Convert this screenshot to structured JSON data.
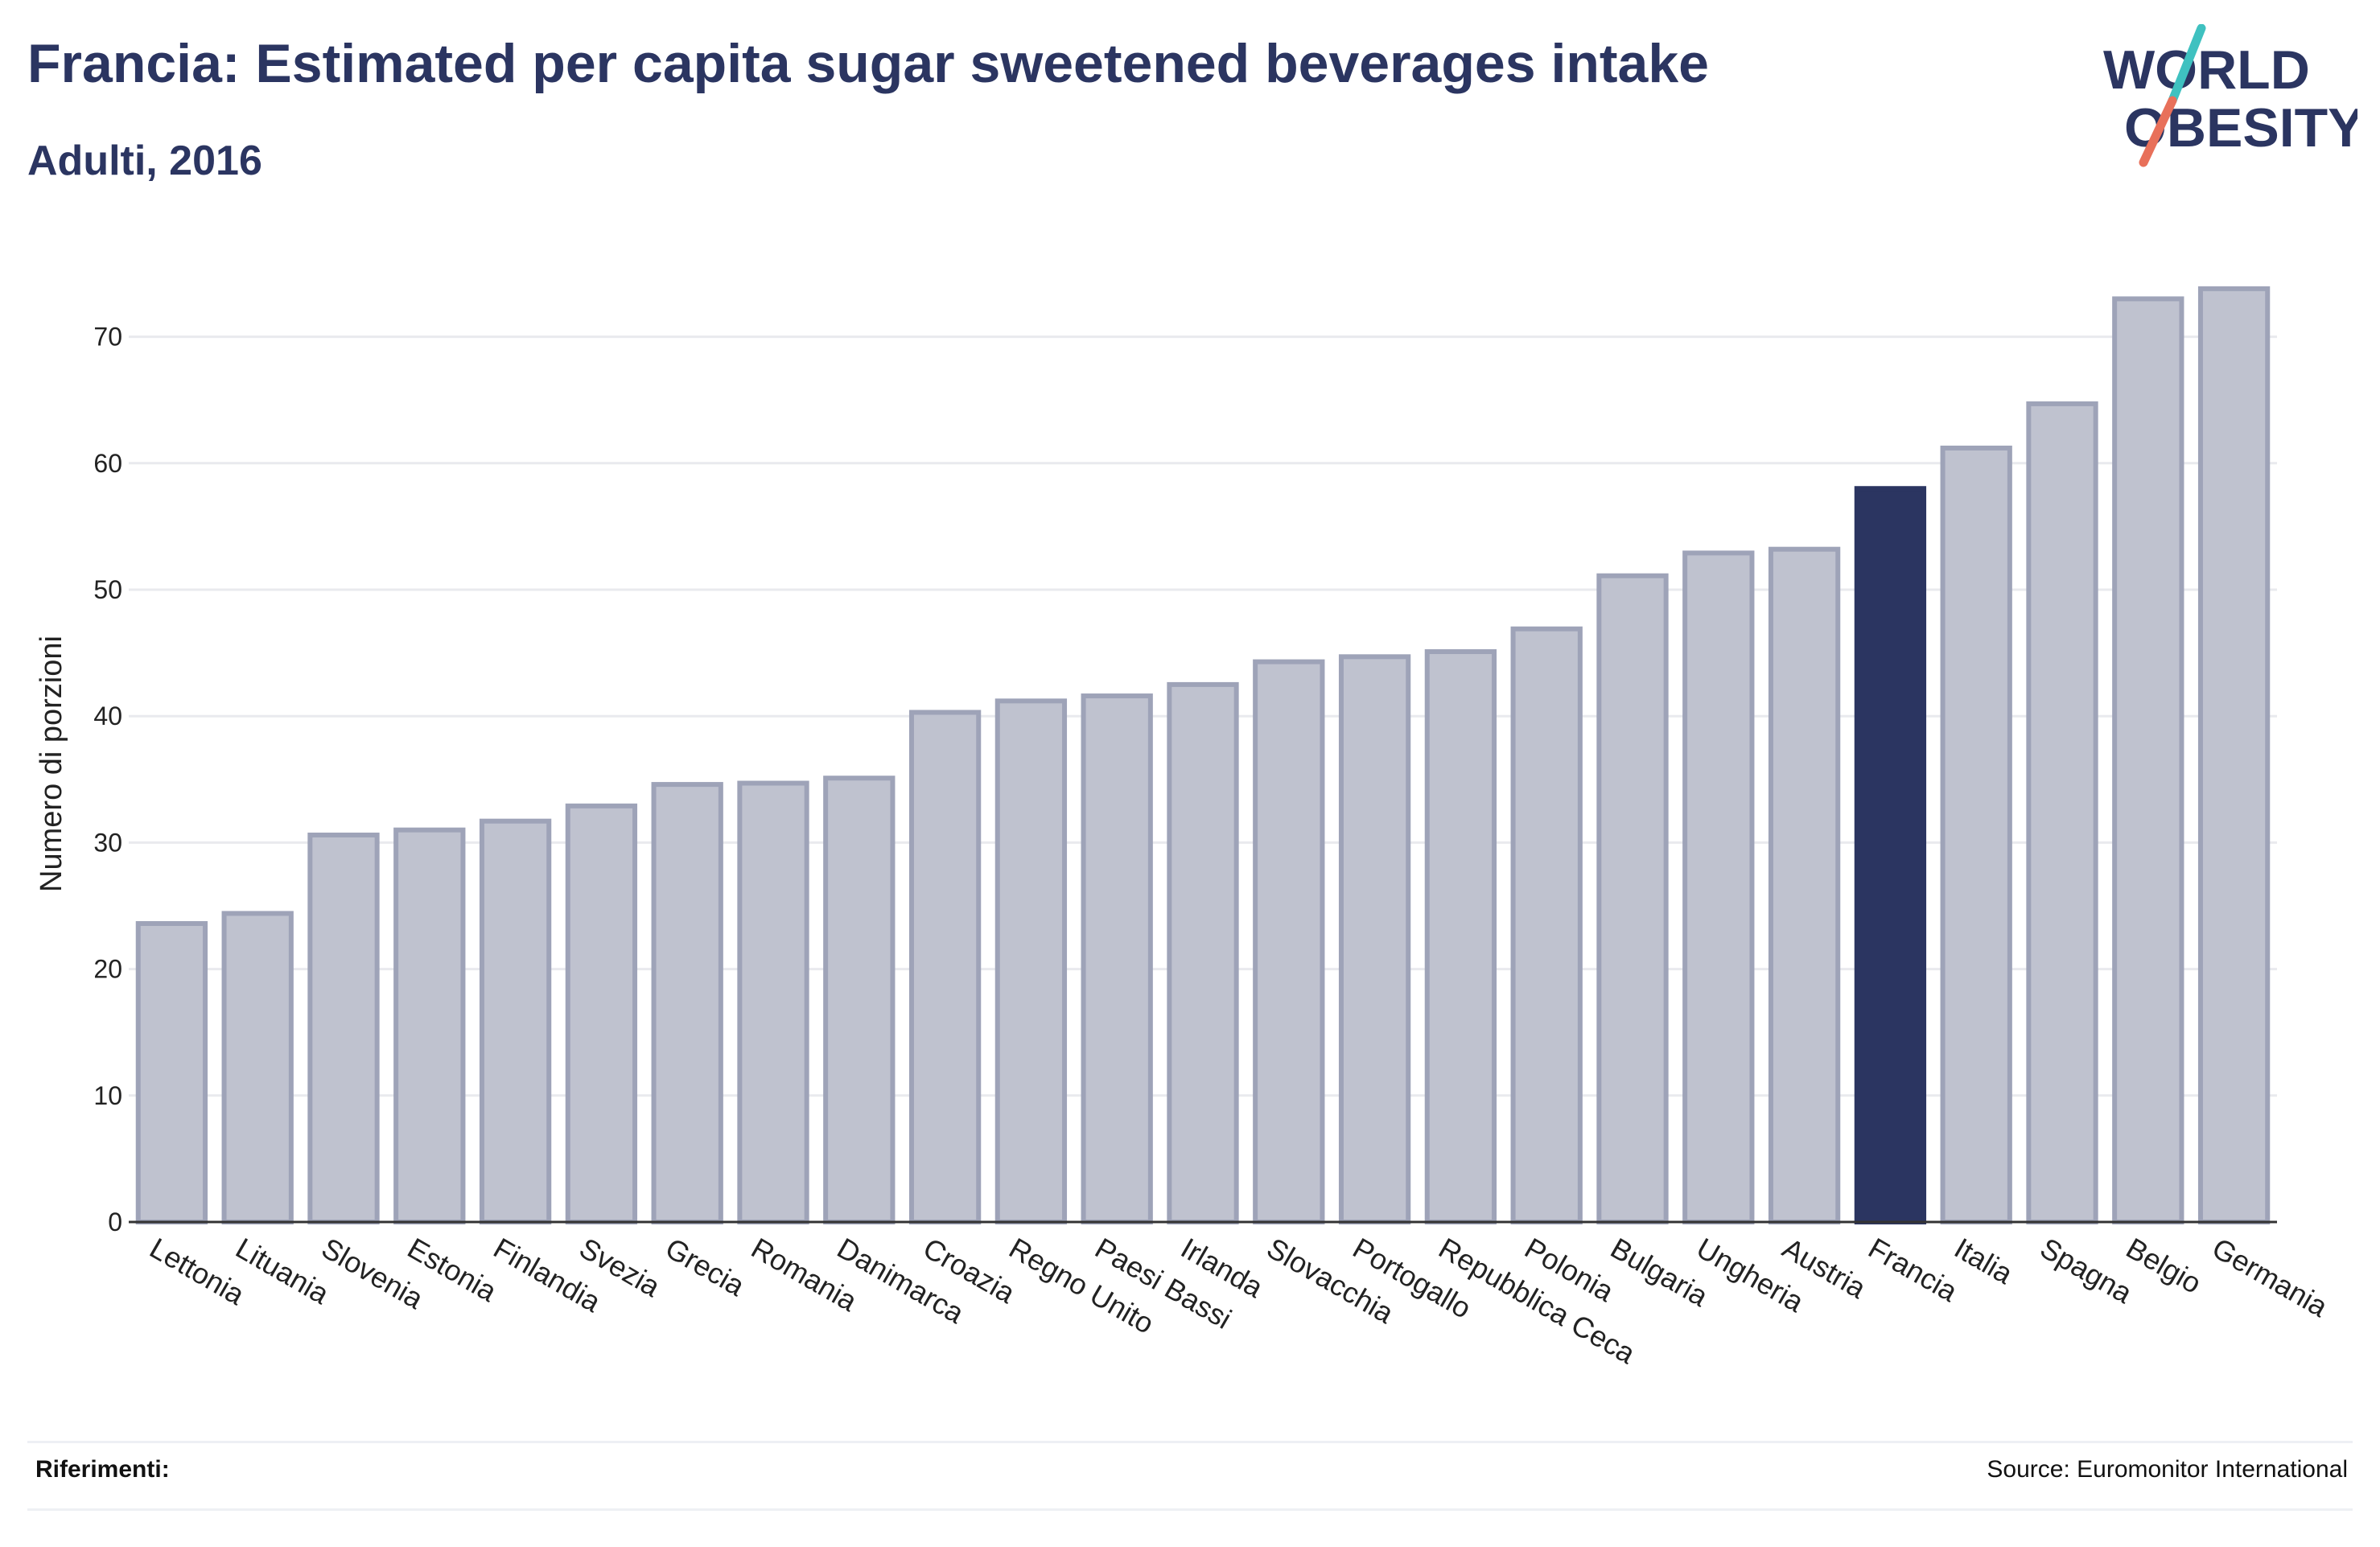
{
  "header": {
    "title": "Francia: Estimated per capita sugar sweetened beverages intake",
    "subtitle": "Adulti, 2016"
  },
  "logo": {
    "line1": "WORLD",
    "line2": "OBESITY",
    "colors": {
      "text": "#2b3561",
      "slash_top": "#3fc1c0",
      "slash_bottom": "#e8705a"
    }
  },
  "footer": {
    "references_label": "Riferimenti:",
    "source": "Source: Euromonitor International"
  },
  "colors": {
    "bar": "#bfc2cf",
    "bar_border": "#9ea3b8",
    "highlight": "#2b3561",
    "grid": "#e9eaee",
    "axis": "#333333"
  },
  "chart_data": {
    "type": "bar",
    "title": "Francia: Estimated per capita sugar sweetened beverages intake",
    "subtitle": "Adulti, 2016",
    "xlabel": "",
    "ylabel": "Numero di porzioni",
    "ylim": [
      0,
      75
    ],
    "yticks": [
      0,
      10,
      20,
      30,
      40,
      50,
      60,
      70
    ],
    "grid": true,
    "highlight": "Francia",
    "categories": [
      "Lettonia",
      "Lituania",
      "Slovenia",
      "Estonia",
      "Finlandia",
      "Svezia",
      "Grecia",
      "Romania",
      "Danimarca",
      "Croazia",
      "Regno Unito",
      "Paesi Bassi",
      "Irlanda",
      "Slovacchia",
      "Portogallo",
      "Repubblica Ceca",
      "Polonia",
      "Bulgaria",
      "Ungheria",
      "Austria",
      "Francia",
      "Italia",
      "Spagna",
      "Belgio",
      "Germania"
    ],
    "values": [
      23.6,
      24.4,
      30.6,
      31.0,
      31.7,
      32.9,
      34.6,
      34.7,
      35.1,
      40.3,
      41.2,
      41.6,
      42.5,
      44.3,
      44.7,
      45.1,
      46.9,
      51.1,
      52.9,
      53.2,
      58.0,
      61.2,
      64.7,
      73.0,
      73.8
    ]
  }
}
